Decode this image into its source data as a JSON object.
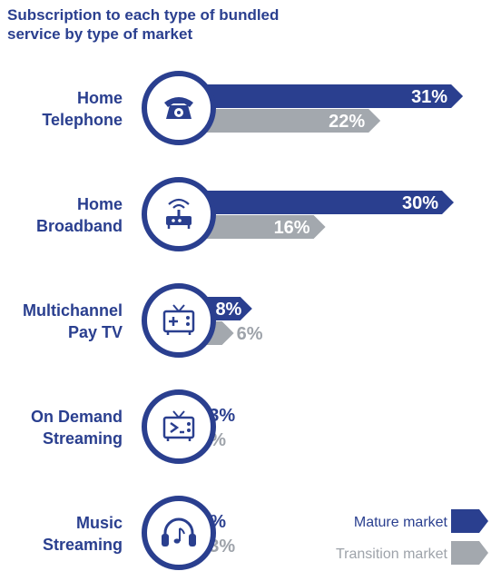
{
  "chart_data": {
    "type": "bar",
    "orientation": "horizontal",
    "title": "Subscription to each type of bundled service by type of market",
    "categories": [
      {
        "lines": [
          "Home",
          "Telephone"
        ],
        "icon": "telephone-icon"
      },
      {
        "lines": [
          "Home",
          "Broadband"
        ],
        "icon": "router-icon"
      },
      {
        "lines": [
          "Multichannel",
          "Pay TV"
        ],
        "icon": "tv-plus-icon"
      },
      {
        "lines": [
          "On Demand",
          "Streaming"
        ],
        "icon": "tv-play-icon"
      },
      {
        "lines": [
          "Music",
          "Streaming"
        ],
        "icon": "headphones-icon"
      }
    ],
    "series": [
      {
        "name": "Mature market",
        "values": [
          31,
          30,
          8,
          3,
          2
        ],
        "labels": [
          "31%",
          "30%",
          "8%",
          "3%",
          "2%"
        ],
        "color": "#2a3f8f"
      },
      {
        "name": "Transition market",
        "values": [
          22,
          16,
          6,
          2,
          3
        ],
        "labels": [
          "22%",
          "16%",
          "6%",
          "2%",
          "3%"
        ],
        "color": "#a3a8ae"
      }
    ],
    "legend_position": "bottom-right",
    "grid": false
  }
}
